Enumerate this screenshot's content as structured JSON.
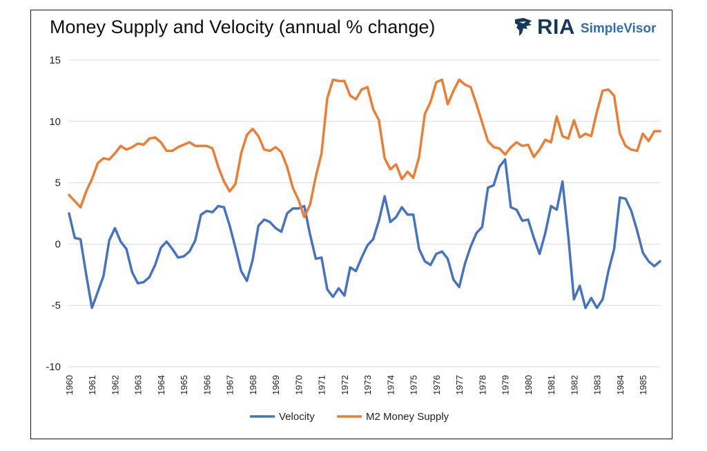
{
  "title": "Money Supply and Velocity (annual % change)",
  "logo": {
    "brand": "RIA",
    "product": "SimpleVisor",
    "icon": "eagle-icon"
  },
  "colors": {
    "velocity": "#4472c4",
    "m2": "#ed7d31",
    "grid": "#d9d9d9",
    "border": "#111111"
  },
  "chart_data": {
    "type": "line",
    "title": "Money Supply and Velocity (annual % change)",
    "xlabel": "",
    "ylabel": "",
    "ylim": [
      -10,
      15
    ],
    "yticks": [
      15,
      10,
      5,
      0,
      -5,
      -10
    ],
    "xticks": [
      "1960",
      "1961",
      "1962",
      "1963",
      "1964",
      "1965",
      "1966",
      "1967",
      "1968",
      "1969",
      "1970",
      "1971",
      "1972",
      "1973",
      "1974",
      "1975",
      "1976",
      "1977",
      "1978",
      "1979",
      "1980",
      "1981",
      "1982",
      "1983",
      "1984",
      "1985"
    ],
    "x_start": 1960,
    "x_step": 0.25,
    "grid": "horizontal",
    "legend_position": "bottom",
    "series": [
      {
        "name": "Velocity",
        "color": "#4472c4",
        "values": [
          2.5,
          0.5,
          0.4,
          -2.5,
          -5.2,
          -3.9,
          -2.6,
          0.3,
          1.3,
          0.2,
          -0.4,
          -2.3,
          -3.2,
          -3.1,
          -2.7,
          -1.7,
          -0.3,
          0.2,
          -0.4,
          -1.1,
          -1.0,
          -0.6,
          0.3,
          2.4,
          2.7,
          2.6,
          3.1,
          3.0,
          1.5,
          -0.3,
          -2.2,
          -3.0,
          -1.3,
          1.5,
          2.0,
          1.8,
          1.3,
          1.0,
          2.5,
          2.9,
          2.9,
          3.1,
          0.8,
          -1.2,
          -1.1,
          -3.7,
          -4.3,
          -3.6,
          -4.2,
          -1.9,
          -2.2,
          -1.1,
          -0.1,
          0.4,
          1.9,
          3.9,
          1.8,
          2.2,
          3.0,
          2.4,
          2.4,
          -0.4,
          -1.4,
          -1.7,
          -0.8,
          -0.6,
          -1.2,
          -2.9,
          -3.5,
          -1.6,
          -0.2,
          0.9,
          1.4,
          4.6,
          4.8,
          6.3,
          6.9,
          3.0,
          2.8,
          1.9,
          2.0,
          0.5,
          -0.8,
          0.9,
          3.1,
          2.8,
          5.1,
          0.7,
          -4.5,
          -3.4,
          -5.2,
          -4.4,
          -5.2,
          -4.5,
          -2.2,
          -0.4,
          3.8,
          3.7,
          2.7,
          1.1,
          -0.7,
          -1.4,
          -1.8,
          -1.4
        ]
      },
      {
        "name": "M2 Money Supply",
        "color": "#ed7d31",
        "values": [
          4.0,
          3.5,
          3.0,
          4.3,
          5.3,
          6.6,
          7.0,
          6.9,
          7.4,
          8.0,
          7.7,
          7.9,
          8.2,
          8.1,
          8.6,
          8.7,
          8.3,
          7.6,
          7.6,
          7.9,
          8.1,
          8.3,
          8.0,
          8.0,
          8.0,
          7.8,
          6.3,
          5.1,
          4.3,
          4.9,
          7.4,
          8.9,
          9.4,
          8.8,
          7.7,
          7.6,
          7.9,
          7.5,
          6.3,
          4.6,
          3.6,
          2.2,
          3.2,
          5.5,
          7.4,
          11.9,
          13.4,
          13.3,
          13.3,
          12.1,
          11.8,
          12.6,
          12.8,
          11.0,
          10.1,
          7.0,
          6.1,
          6.5,
          5.3,
          5.9,
          5.4,
          7.1,
          10.6,
          11.6,
          13.2,
          13.4,
          11.4,
          12.5,
          13.4,
          13.0,
          12.8,
          11.4,
          9.9,
          8.4,
          7.9,
          7.8,
          7.3,
          7.9,
          8.3,
          8.0,
          8.1,
          7.1,
          7.7,
          8.5,
          8.3,
          10.4,
          8.8,
          8.6,
          10.1,
          8.7,
          9.0,
          8.8,
          10.8,
          12.5,
          12.6,
          12.1,
          9.0,
          8.0,
          7.7,
          7.6,
          9.0,
          8.4,
          9.2,
          9.2
        ]
      }
    ]
  }
}
